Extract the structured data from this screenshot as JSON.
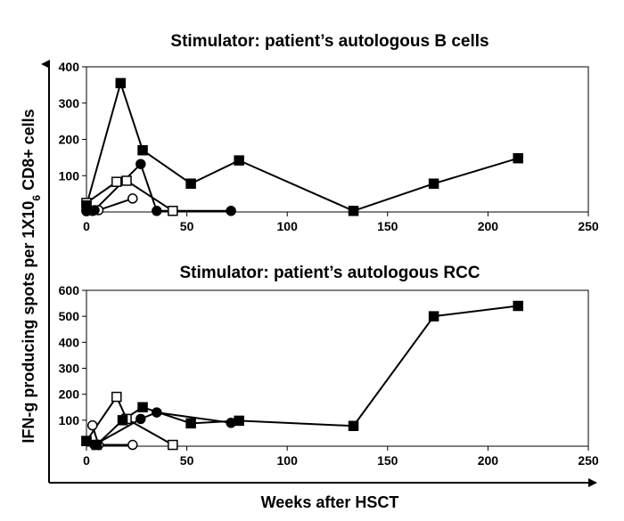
{
  "figure": {
    "xlabel": "Weeks after HSCT",
    "ylabel": "IFN-g producing spots per 1X10",
    "ylabel_sub": "6",
    "ylabel_end": " CD8+ cells"
  },
  "chart_data": [
    {
      "type": "line",
      "title": "Stimulator: patient’s autologous B cells",
      "xlim": [
        0,
        250
      ],
      "ylim": [
        0,
        400
      ],
      "xticks": [
        0,
        50,
        100,
        150,
        200,
        250
      ],
      "yticks": [
        100,
        200,
        300,
        400
      ],
      "grid": false,
      "series": [
        {
          "marker": "filled-square",
          "points": [
            [
              0,
              18
            ],
            [
              17,
              355
            ],
            [
              28,
              170
            ],
            [
              52,
              78
            ],
            [
              76,
              142
            ],
            [
              133,
              3
            ],
            [
              173,
              78
            ],
            [
              215,
              148
            ]
          ]
        },
        {
          "marker": "filled-circle",
          "points": [
            [
              0,
              3
            ],
            [
              4,
              5
            ],
            [
              27,
              132
            ],
            [
              35,
              3
            ],
            [
              72,
              3
            ]
          ]
        },
        {
          "marker": "open-square",
          "points": [
            [
              0,
              25
            ],
            [
              15,
              83
            ],
            [
              20,
              86
            ],
            [
              43,
              3
            ]
          ]
        },
        {
          "marker": "open-circle",
          "points": [
            [
              0,
              2
            ],
            [
              3,
              3
            ],
            [
              6,
              5
            ],
            [
              23,
              37
            ]
          ]
        }
      ]
    },
    {
      "type": "line",
      "title": "Stimulator: patient’s autologous RCC",
      "xlim": [
        0,
        250
      ],
      "ylim": [
        0,
        600
      ],
      "xticks": [
        0,
        50,
        100,
        150,
        200,
        250
      ],
      "yticks": [
        100,
        200,
        300,
        400,
        500,
        600
      ],
      "grid": false,
      "series": [
        {
          "marker": "filled-square",
          "points": [
            [
              0,
              20
            ],
            [
              5,
              5
            ],
            [
              18,
              100
            ],
            [
              28,
              150
            ],
            [
              52,
              88
            ],
            [
              76,
              98
            ],
            [
              133,
              78
            ],
            [
              173,
              500
            ],
            [
              215,
              540
            ]
          ]
        },
        {
          "marker": "filled-circle",
          "points": [
            [
              4,
              5
            ],
            [
              27,
              105
            ],
            [
              35,
              130
            ],
            [
              72,
              90
            ]
          ]
        },
        {
          "marker": "open-square",
          "points": [
            [
              0,
              20
            ],
            [
              15,
              190
            ],
            [
              20,
              105
            ],
            [
              43,
              5
            ]
          ]
        },
        {
          "marker": "open-circle",
          "points": [
            [
              3,
              80
            ],
            [
              6,
              5
            ],
            [
              23,
              5
            ]
          ]
        }
      ]
    }
  ]
}
